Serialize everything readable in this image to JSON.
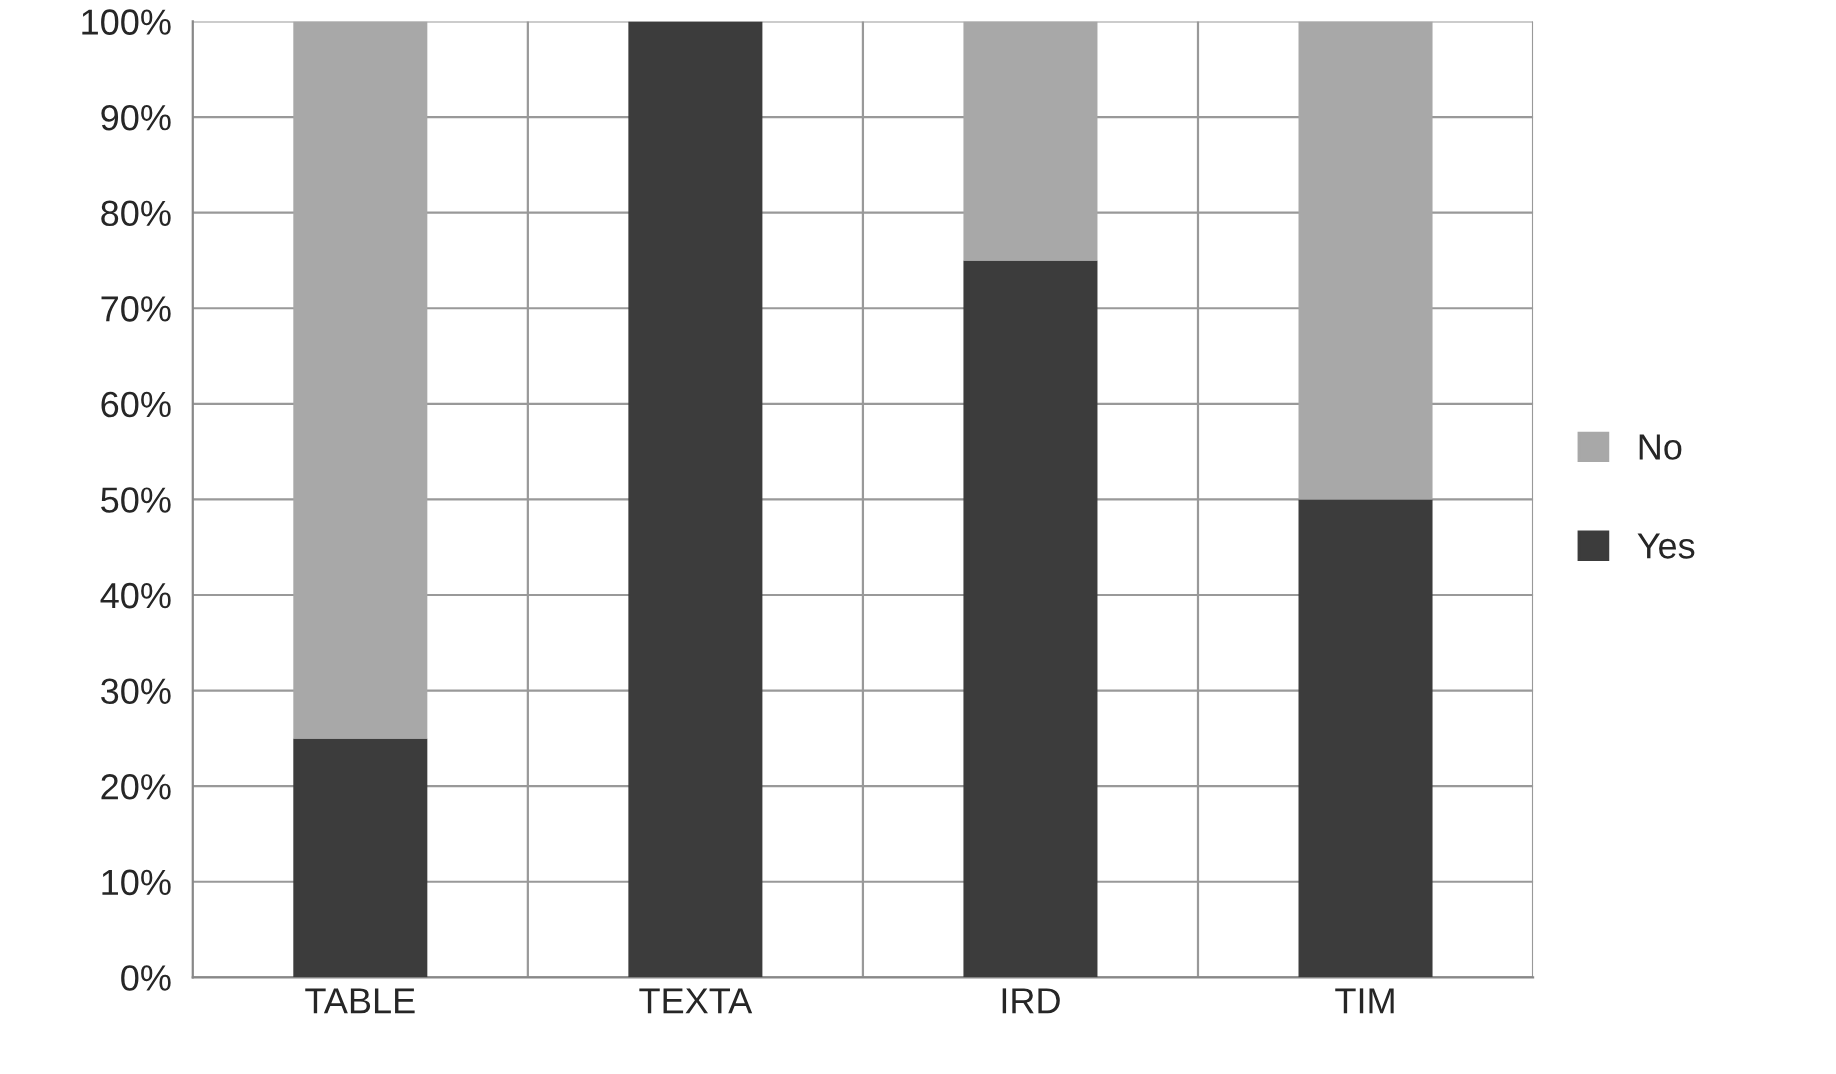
{
  "chart_data": {
    "type": "bar",
    "stacked": true,
    "categories": [
      "TABLE",
      "TEXTA",
      "IRD",
      "TIM"
    ],
    "series": [
      {
        "name": "Yes",
        "color": "#3c3c3c",
        "values": [
          25,
          100,
          75,
          50
        ]
      },
      {
        "name": "No",
        "color": "#a8a8a8",
        "values": [
          75,
          0,
          25,
          50
        ]
      }
    ],
    "ylim": [
      0,
      100
    ],
    "yticks": [
      {
        "value": 0,
        "label": "0%"
      },
      {
        "value": 10,
        "label": "10%"
      },
      {
        "value": 20,
        "label": "20%"
      },
      {
        "value": 30,
        "label": "30%"
      },
      {
        "value": 40,
        "label": "40%"
      },
      {
        "value": 50,
        "label": "50%"
      },
      {
        "value": 60,
        "label": "60%"
      },
      {
        "value": 70,
        "label": "70%"
      },
      {
        "value": 80,
        "label": "80%"
      },
      {
        "value": 90,
        "label": "90%"
      },
      {
        "value": 100,
        "label": "100%"
      }
    ],
    "grid": true,
    "legend": "right"
  }
}
